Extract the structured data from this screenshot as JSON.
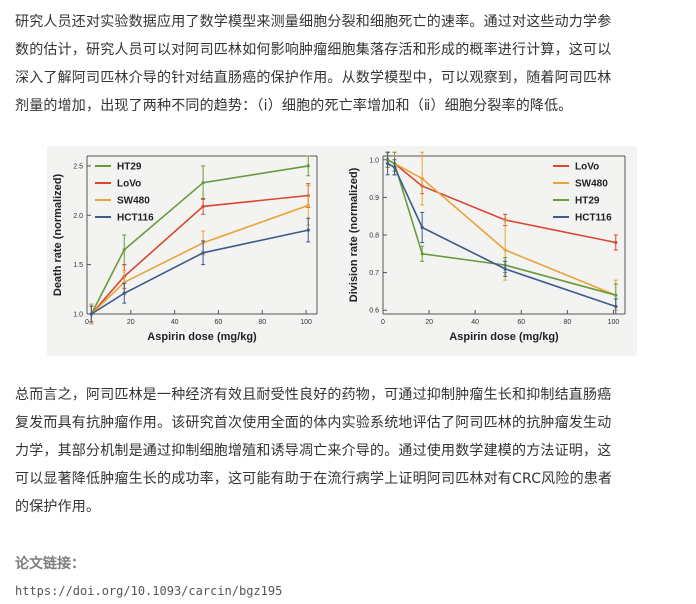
{
  "article": {
    "paragraph_1": "研究人员还对实验数据应用了数学模型来测量细胞分裂和细胞死亡的速率。通过对这些动力学参\n数的估计，研究人员可以对阿司匹林如何影响肿瘤细胞集落存活和形成的概率进行计算，这可以\n深入了解阿司匹林介导的针对结直肠癌的保护作用。从数学模型中，可以观察到，随着阿司匹林\n剂量的增加，出现了两种不同的趋势：（ⅰ）细胞的死亡率增加和（ⅱ）细胞分裂率的降低。",
    "paragraph_2": "总而言之，阿司匹林是一种经济有效且耐受性良好的药物，可通过抑制肿瘤生长和抑制结直肠癌\n复发而具有抗肿瘤作用。该研究首次使用全面的体内实验系统地评估了阿司匹林的抗肿瘤发生动\n力学，其部分机制是通过抑制细胞增殖和诱导凋亡来介导的。通过使用数学建模的方法证明，这\n可以显著降低肿瘤生长的成功率，这可能有助于在流行病学上证明阿司匹林对有CRC风险的患者\n的保护作用。",
    "links_label": "论文链接：",
    "link_url": "https://doi.org/10.1093/carcin/bgz195"
  },
  "chart_data": [
    {
      "type": "line",
      "xlabel": "Aspirin dose (mg/kg)",
      "ylabel": "Death rate (normalized)",
      "xlim": [
        0,
        105
      ],
      "ylim": [
        1.0,
        2.6
      ],
      "x_ticks": [
        0,
        20,
        40,
        60,
        80,
        100
      ],
      "y_ticks": [
        1.0,
        1.5,
        2.0,
        2.5
      ],
      "grid": false,
      "legend_position": "top-left",
      "series": [
        {
          "name": "HT29",
          "color": "#6a9a3a",
          "x": [
            2,
            17,
            53,
            101
          ],
          "y": [
            1.0,
            1.65,
            2.33,
            2.5
          ],
          "err": [
            0.1,
            0.15,
            0.17,
            0.1
          ]
        },
        {
          "name": "LoVo",
          "color": "#d9472f",
          "x": [
            2,
            17,
            53,
            101
          ],
          "y": [
            1.0,
            1.38,
            2.09,
            2.2
          ],
          "err": [
            0.08,
            0.12,
            0.08,
            0.12
          ]
        },
        {
          "name": "SW480",
          "color": "#e8a33a",
          "x": [
            2,
            17,
            53,
            101
          ],
          "y": [
            1.0,
            1.32,
            1.72,
            2.1
          ],
          "err": [
            0.1,
            0.12,
            0.12,
            0.2
          ]
        },
        {
          "name": "HCT116",
          "color": "#3c5a8c",
          "x": [
            2,
            17,
            53,
            101
          ],
          "y": [
            1.0,
            1.21,
            1.62,
            1.85
          ],
          "err": [
            0.08,
            0.1,
            0.12,
            0.12
          ]
        }
      ]
    },
    {
      "type": "line",
      "xlabel": "Aspirin dose (mg/kg)",
      "ylabel": "Division rate (normalized)",
      "xlim": [
        0,
        105
      ],
      "ylim": [
        0.59,
        1.01
      ],
      "x_ticks": [
        0,
        20,
        40,
        60,
        80,
        100
      ],
      "y_ticks": [
        0.6,
        0.7,
        0.8,
        0.9,
        1.0
      ],
      "grid": false,
      "legend_position": "top-right",
      "series": [
        {
          "name": "LoVo",
          "color": "#d9472f",
          "x": [
            2,
            5,
            17,
            53,
            101
          ],
          "y": [
            1.0,
            0.99,
            0.93,
            0.84,
            0.78
          ],
          "err": [
            0.02,
            0.02,
            0.02,
            0.015,
            0.02
          ]
        },
        {
          "name": "SW480",
          "color": "#e8a33a",
          "x": [
            2,
            5,
            17,
            53,
            101
          ],
          "y": [
            1.0,
            0.99,
            0.95,
            0.76,
            0.64
          ],
          "err": [
            0.02,
            0.03,
            0.07,
            0.08,
            0.04
          ]
        },
        {
          "name": "HT29",
          "color": "#6a9a3a",
          "x": [
            2,
            5,
            17,
            53,
            101
          ],
          "y": [
            1.0,
            0.99,
            0.75,
            0.72,
            0.64
          ],
          "err": [
            0.02,
            0.03,
            0.02,
            0.02,
            0.03
          ]
        },
        {
          "name": "HCT116",
          "color": "#3c5a8c",
          "x": [
            2,
            5,
            17,
            53,
            101
          ],
          "y": [
            0.99,
            0.98,
            0.82,
            0.71,
            0.61
          ],
          "err": [
            0.03,
            0.02,
            0.04,
            0.02,
            0.02
          ]
        }
      ]
    }
  ]
}
